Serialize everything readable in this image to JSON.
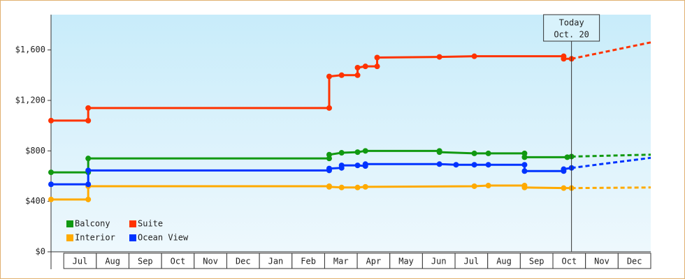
{
  "chart_data": {
    "type": "line",
    "step_markers": true,
    "xlim": [
      -0.39,
      18
    ],
    "ylim": [
      0,
      1880
    ],
    "xticks": [
      {
        "value": 0.5,
        "label": "Jul"
      },
      {
        "value": 1.5,
        "label": "Aug"
      },
      {
        "value": 2.5,
        "label": "Sep"
      },
      {
        "value": 3.5,
        "label": "Oct"
      },
      {
        "value": 4.5,
        "label": "Nov"
      },
      {
        "value": 5.5,
        "label": "Dec"
      },
      {
        "value": 6.5,
        "label": "Jan"
      },
      {
        "value": 7.5,
        "label": "Feb"
      },
      {
        "value": 8.5,
        "label": "Mar"
      },
      {
        "value": 9.5,
        "label": "Apr"
      },
      {
        "value": 10.5,
        "label": "May"
      },
      {
        "value": 11.5,
        "label": "Jun"
      },
      {
        "value": 12.5,
        "label": "Jul"
      },
      {
        "value": 13.5,
        "label": "Aug"
      },
      {
        "value": 14.5,
        "label": "Sep"
      },
      {
        "value": 15.5,
        "label": "Oct"
      },
      {
        "value": 16.5,
        "label": "Nov"
      },
      {
        "value": 17.5,
        "label": "Dec"
      }
    ],
    "yticks": [
      {
        "value": 0,
        "label": "$0"
      },
      {
        "value": 400,
        "label": "$400"
      },
      {
        "value": 800,
        "label": "$800"
      },
      {
        "value": 1200,
        "label": "$1,200"
      },
      {
        "value": 1600,
        "label": "$1,600"
      }
    ],
    "annotation": {
      "x": 15.57,
      "label": "Today",
      "date": "Oct. 20"
    },
    "series": [
      {
        "name": "Balcony",
        "color": "#119911",
        "x": [
          -0.39,
          0.75,
          0.75,
          8.14,
          8.14,
          8.52,
          9.01,
          9.25,
          11.52,
          11.52,
          12.59,
          13.02,
          14.13,
          14.13,
          15.44,
          15.57
        ],
        "values": [
          630,
          630,
          740,
          740,
          770,
          785,
          790,
          800,
          800,
          790,
          780,
          780,
          780,
          750,
          750,
          755
        ],
        "forecast": {
          "x": [
            15.57,
            18
          ],
          "values": [
            755,
            770
          ]
        }
      },
      {
        "name": "Interior",
        "color": "#ffaa00",
        "x": [
          -0.39,
          0.75,
          0.75,
          8.14,
          8.14,
          8.52,
          9.01,
          9.25,
          12.59,
          13.02,
          14.13,
          14.13,
          15.33,
          15.57
        ],
        "values": [
          415,
          415,
          520,
          520,
          515,
          510,
          510,
          515,
          520,
          525,
          525,
          510,
          505,
          505
        ],
        "forecast": {
          "x": [
            15.57,
            18
          ],
          "values": [
            505,
            510
          ]
        }
      },
      {
        "name": "Suite",
        "color": "#ff3300",
        "x": [
          -0.39,
          0.75,
          0.75,
          8.14,
          8.14,
          8.52,
          9.01,
          9.01,
          9.25,
          9.61,
          9.61,
          11.52,
          12.59,
          15.33,
          15.33,
          15.57
        ],
        "values": [
          1040,
          1040,
          1140,
          1140,
          1390,
          1400,
          1400,
          1460,
          1470,
          1470,
          1540,
          1545,
          1550,
          1550,
          1530,
          1530
        ],
        "forecast": {
          "x": [
            15.57,
            18
          ],
          "values": [
            1530,
            1660
          ]
        }
      },
      {
        "name": "Ocean View",
        "color": "#0033ff",
        "x": [
          -0.39,
          0.75,
          0.75,
          8.14,
          8.14,
          8.52,
          8.52,
          9.01,
          9.25,
          9.25,
          11.52,
          12.03,
          12.59,
          13.02,
          14.13,
          14.13,
          15.33,
          15.33,
          15.57
        ],
        "values": [
          535,
          535,
          645,
          645,
          660,
          665,
          685,
          685,
          680,
          695,
          695,
          690,
          690,
          690,
          690,
          640,
          640,
          655,
          665
        ],
        "forecast": {
          "x": [
            15.57,
            18
          ],
          "values": [
            665,
            745
          ]
        }
      }
    ]
  }
}
